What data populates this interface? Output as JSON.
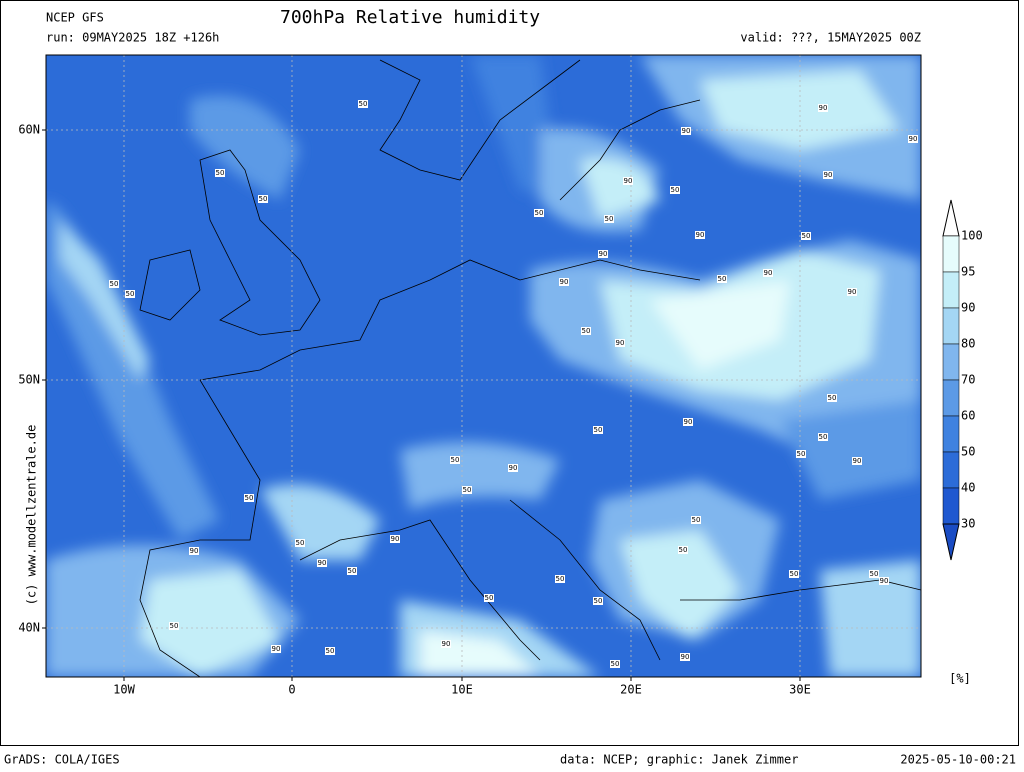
{
  "header": {
    "model": "NCEP GFS",
    "title": "700hPa Relative humidity",
    "run": "run: 09MAY2025 18Z +126h",
    "valid": "valid: ???, 15MAY2025 00Z"
  },
  "map": {
    "lat_labels": [
      "60N",
      "50N",
      "40N"
    ],
    "lon_labels": [
      "10W",
      "0",
      "10E",
      "20E",
      "30E"
    ],
    "contour_labels": [
      "50",
      "50",
      "50",
      "50",
      "50",
      "50",
      "90",
      "50",
      "50",
      "90",
      "90",
      "90",
      "50",
      "90",
      "50",
      "90",
      "90",
      "90",
      "90",
      "90",
      "50",
      "90",
      "50",
      "50",
      "50",
      "90",
      "90",
      "50",
      "50",
      "90",
      "50",
      "50",
      "50",
      "50",
      "90",
      "90",
      "90",
      "50",
      "50",
      "50",
      "50",
      "50",
      "90",
      "50",
      "50",
      "50",
      "90",
      "50",
      "90",
      "50",
      "90"
    ]
  },
  "colorbar": {
    "ticks": [
      100,
      95,
      90,
      80,
      70,
      60,
      50,
      40,
      30
    ],
    "colors": [
      "#e6fcfc",
      "#c4eef8",
      "#a4d6f4",
      "#80b6ee",
      "#5c9ae6",
      "#3f82e0",
      "#2c6cd8",
      "#1f58d0"
    ],
    "under_color": "#1a4cc4",
    "over_color": "#ffffff",
    "unit": "[%]"
  },
  "side_credit": "(c) www.modellzentrale.de",
  "footer": {
    "left": "GrADS: COLA/IGES",
    "center": "data: NCEP; graphic: Janek Zimmer",
    "right": "2025-05-10-00:21"
  }
}
